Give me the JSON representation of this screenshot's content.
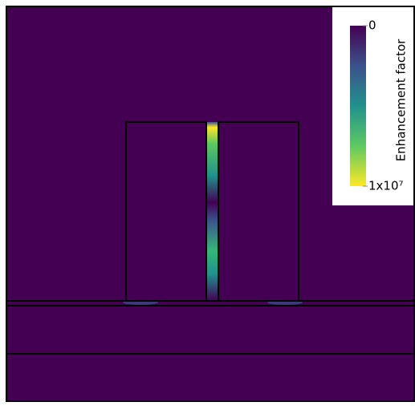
{
  "chart_data": {
    "type": "field-map",
    "colorbar": {
      "label": "Enhancement factor",
      "lim": [
        0,
        10000000
      ],
      "ticks": [
        0,
        {
          "value": 10000000,
          "label": "1x10⁷"
        }
      ],
      "colormap": [
        "#440154",
        "#3b528b",
        "#21918c",
        "#5ec962",
        "#fde725"
      ]
    }
  }
}
